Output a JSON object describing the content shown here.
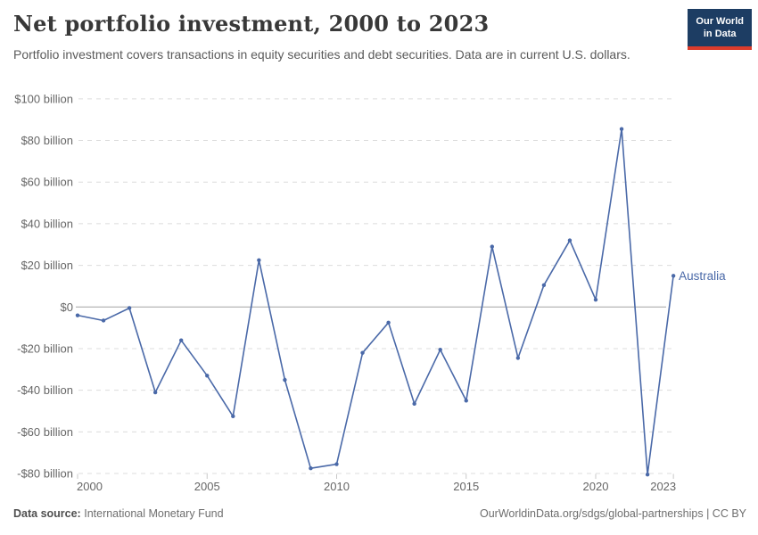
{
  "header": {
    "title": "Net portfolio investment, 2000 to 2023",
    "subtitle": "Portfolio investment covers transactions in equity securities and debt securities. Data are in current U.S. dollars.",
    "logo": {
      "line1": "Our World",
      "line2": "in Data",
      "bg_color": "#1d3d63",
      "accent_color": "#dc3c2c"
    }
  },
  "chart_data": {
    "type": "line",
    "title": "Net portfolio investment, 2000 to 2023",
    "unit": "current U.S. dollars (billions)",
    "x": [
      2000,
      2001,
      2002,
      2003,
      2004,
      2005,
      2006,
      2007,
      2008,
      2009,
      2010,
      2011,
      2012,
      2013,
      2014,
      2015,
      2016,
      2017,
      2018,
      2019,
      2020,
      2021,
      2022,
      2023
    ],
    "series": [
      {
        "name": "Australia",
        "color": "#4a69a8",
        "values": [
          -4,
          -6.5,
          -0.5,
          -41,
          -16,
          -33,
          -52.5,
          22.5,
          -35,
          -77.5,
          -75.5,
          -22,
          -7.5,
          -46.5,
          -20.5,
          -45,
          29,
          -24.5,
          10.5,
          32,
          3.5,
          85.5,
          -80.5,
          15
        ]
      }
    ],
    "ylim": [
      -80,
      100
    ],
    "yticks": [
      {
        "value": 100,
        "label": "$100 billion"
      },
      {
        "value": 80,
        "label": "$80 billion"
      },
      {
        "value": 60,
        "label": "$60 billion"
      },
      {
        "value": 40,
        "label": "$40 billion"
      },
      {
        "value": 20,
        "label": "$20 billion"
      },
      {
        "value": 0,
        "label": "$0"
      },
      {
        "value": -20,
        "label": "-$20 billion"
      },
      {
        "value": -40,
        "label": "-$40 billion"
      },
      {
        "value": -60,
        "label": "-$60 billion"
      },
      {
        "value": -80,
        "label": "-$80 billion"
      }
    ],
    "xticks": [
      {
        "value": 2000,
        "label": "2000"
      },
      {
        "value": 2005,
        "label": "2005"
      },
      {
        "value": 2010,
        "label": "2010"
      },
      {
        "value": 2015,
        "label": "2015"
      },
      {
        "value": 2020,
        "label": "2020"
      },
      {
        "value": 2023,
        "label": "2023"
      }
    ],
    "grid": "horizontal-dashed",
    "legend_position": "end-of-line-label",
    "colors": {
      "line": "#4a69a8",
      "grid": "#dcdcdc",
      "zero_line": "#a3a3a3",
      "tick": "#c8c8c8",
      "axis_text": "#666666"
    }
  },
  "footer": {
    "source_label": "Data source:",
    "source_value": "International Monetary Fund",
    "link": "OurWorldinData.org/sdgs/global-partnerships",
    "separator": "|",
    "license": "CC BY"
  }
}
